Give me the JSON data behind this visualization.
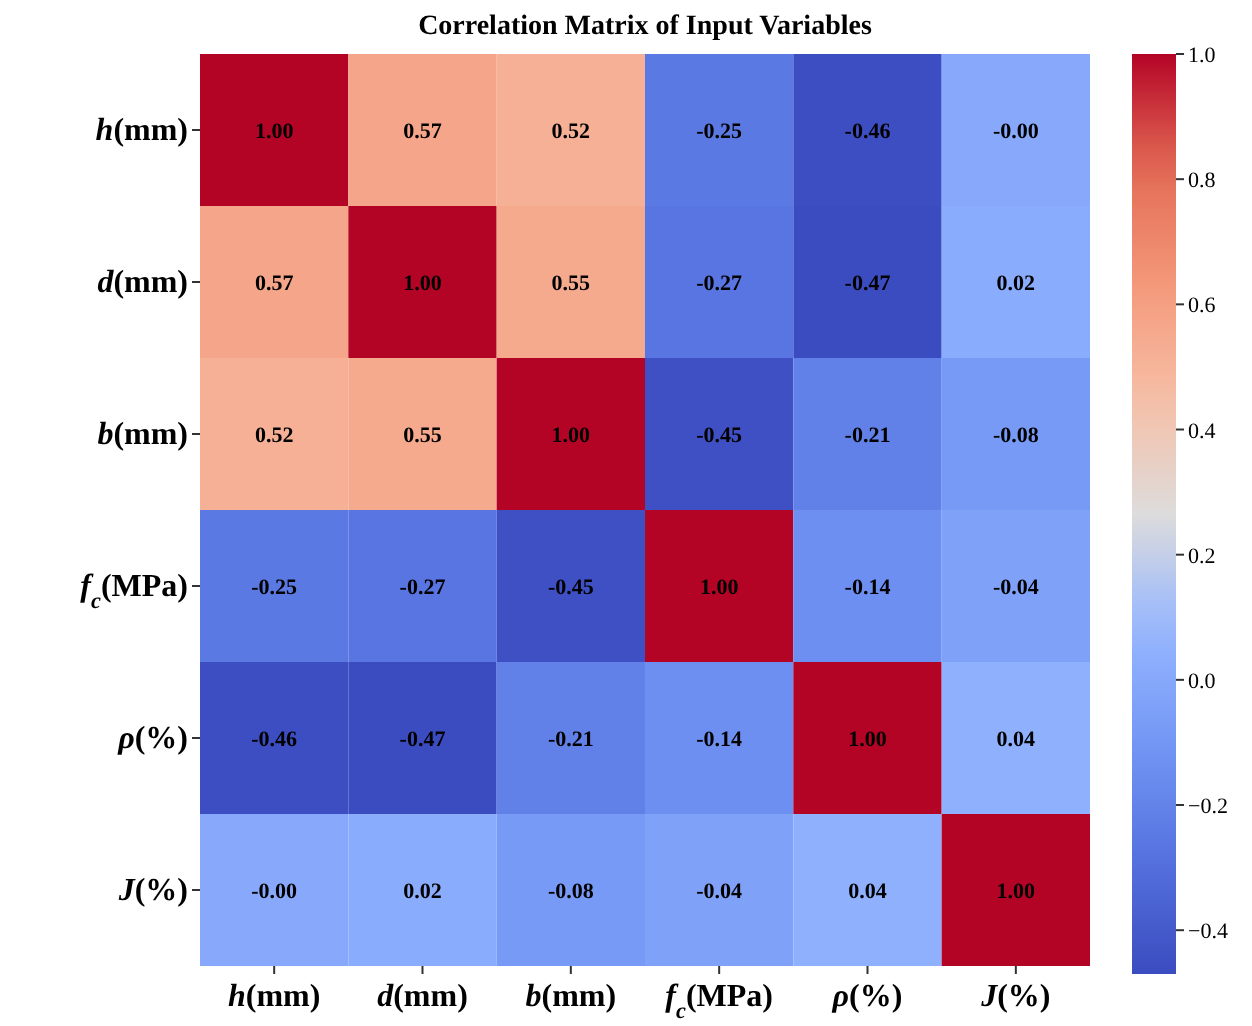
{
  "chart_data": {
    "type": "heatmap",
    "title": "Correlation Matrix of Input Variables",
    "categories": [
      "h(mm)",
      "d(mm)",
      "b(mm)",
      "f$_{c}$(MPa)",
      "ρ(%)",
      "J(%)"
    ],
    "y_categories": [
      "h(mm)",
      "d(mm)",
      "b(mm)",
      "f$_{c}$(MPa)",
      "ρ(%)",
      "J(%)"
    ],
    "cells": [
      [
        1.0,
        0.57,
        0.52,
        -0.25,
        -0.46,
        -0.0
      ],
      [
        0.57,
        1.0,
        0.55,
        -0.27,
        -0.47,
        0.02
      ],
      [
        0.52,
        0.55,
        1.0,
        -0.45,
        -0.21,
        -0.08
      ],
      [
        -0.25,
        -0.27,
        -0.45,
        1.0,
        -0.14,
        -0.04
      ],
      [
        -0.46,
        -0.47,
        -0.21,
        -0.14,
        1.0,
        0.04
      ],
      [
        -0.0,
        0.02,
        -0.08,
        -0.04,
        0.04,
        1.0
      ]
    ],
    "cell_labels": [
      [
        "1.00",
        "0.57",
        "0.52",
        "-0.25",
        "-0.46",
        "-0.00"
      ],
      [
        "0.57",
        "1.00",
        "0.55",
        "-0.27",
        "-0.47",
        "0.02"
      ],
      [
        "0.52",
        "0.55",
        "1.00",
        "-0.45",
        "-0.21",
        "-0.08"
      ],
      [
        "-0.25",
        "-0.27",
        "-0.45",
        "1.00",
        "-0.14",
        "-0.04"
      ],
      [
        "-0.46",
        "-0.47",
        "-0.21",
        "-0.14",
        "1.00",
        "0.04"
      ],
      [
        "-0.00",
        "0.02",
        "-0.08",
        "-0.04",
        "0.04",
        "1.00"
      ]
    ],
    "clim": [
      -0.47,
      1.0
    ],
    "cticks": [
      {
        "value": -0.4,
        "label": "−0.4"
      },
      {
        "value": -0.2,
        "label": "−0.2"
      },
      {
        "value": 0,
        "label": "0.0"
      },
      {
        "value": 0.2,
        "label": "0.2"
      },
      {
        "value": 0.4,
        "label": "0.4"
      },
      {
        "value": 0.6,
        "label": "0.6"
      },
      {
        "value": 0.8,
        "label": "0.8"
      },
      {
        "value": 1.0,
        "label": "1.0"
      }
    ]
  }
}
